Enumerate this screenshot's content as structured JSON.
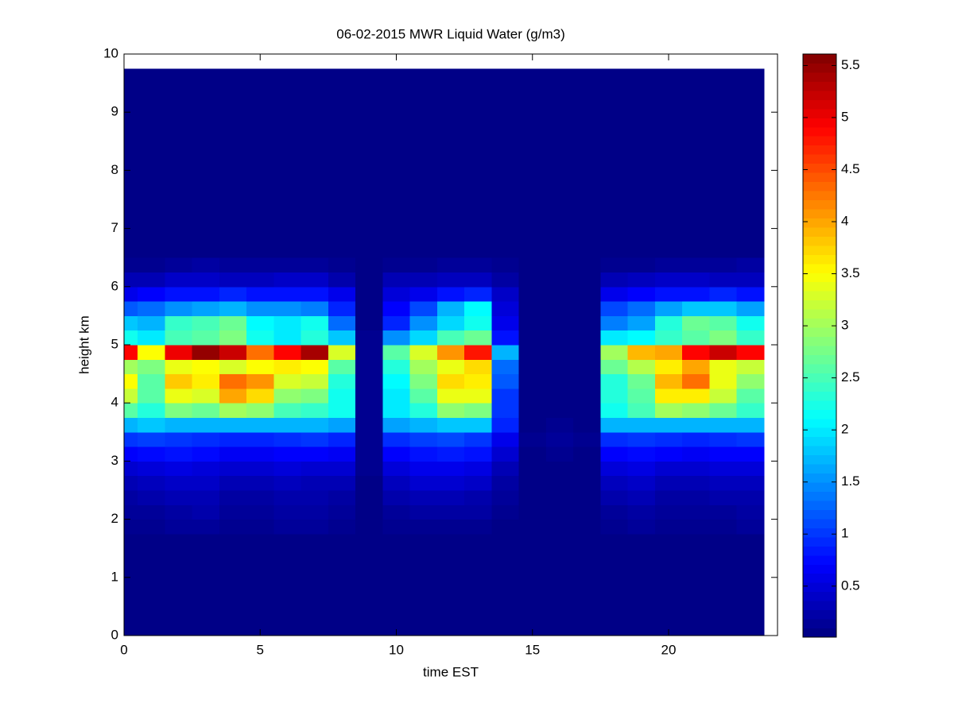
{
  "chart_data": {
    "type": "heatmap",
    "title": "06-02-2015 MWR Liquid Water (g/m3)",
    "x_label": "time EST",
    "y_label": "height km",
    "x": [
      0,
      1,
      2,
      3,
      4,
      5,
      6,
      7,
      8,
      9,
      10,
      11,
      12,
      13,
      14,
      15,
      16,
      17,
      18,
      19,
      20,
      21,
      22,
      23
    ],
    "y_bins": [
      0,
      1.75,
      2,
      2.25,
      2.5,
      2.75,
      3,
      3.25,
      3.5,
      3.75,
      4,
      4.25,
      4.5,
      4.75,
      5,
      5.25,
      5.5,
      5.75,
      6,
      6.25,
      6.5,
      9.75
    ],
    "z": [
      [
        0.05,
        0.05,
        0.05,
        0.05,
        0.05,
        0.05,
        0.05,
        0.05,
        0.05,
        0.05,
        0.05,
        0.05,
        0.05,
        0.05,
        0.05,
        0.05,
        0.05,
        0.05,
        0.05,
        0.05,
        0.05,
        0.05,
        0.05,
        0.05
      ],
      [
        0.1,
        0.1,
        0.15,
        0.15,
        0.1,
        0.1,
        0.15,
        0.15,
        0.1,
        0.05,
        0.1,
        0.1,
        0.1,
        0.1,
        0.05,
        0.05,
        0.05,
        0.05,
        0.1,
        0.15,
        0.1,
        0.1,
        0.1,
        0.15
      ],
      [
        0.15,
        0.15,
        0.2,
        0.25,
        0.15,
        0.15,
        0.2,
        0.2,
        0.15,
        0.05,
        0.15,
        0.2,
        0.2,
        0.2,
        0.1,
        0.05,
        0.05,
        0.05,
        0.15,
        0.2,
        0.15,
        0.15,
        0.15,
        0.2
      ],
      [
        0.2,
        0.25,
        0.3,
        0.3,
        0.2,
        0.2,
        0.25,
        0.25,
        0.2,
        0.05,
        0.25,
        0.3,
        0.3,
        0.25,
        0.15,
        0.05,
        0.05,
        0.05,
        0.25,
        0.3,
        0.2,
        0.2,
        0.25,
        0.25
      ],
      [
        0.3,
        0.35,
        0.4,
        0.4,
        0.3,
        0.3,
        0.35,
        0.3,
        0.3,
        0.05,
        0.35,
        0.45,
        0.45,
        0.4,
        0.2,
        0.05,
        0.05,
        0.05,
        0.35,
        0.4,
        0.3,
        0.3,
        0.35,
        0.35
      ],
      [
        0.45,
        0.5,
        0.55,
        0.5,
        0.45,
        0.45,
        0.5,
        0.45,
        0.45,
        0.1,
        0.5,
        0.6,
        0.6,
        0.55,
        0.3,
        0.05,
        0.05,
        0.05,
        0.5,
        0.55,
        0.45,
        0.45,
        0.5,
        0.5
      ],
      [
        0.7,
        0.75,
        0.8,
        0.75,
        0.65,
        0.65,
        0.7,
        0.7,
        0.65,
        0.1,
        0.7,
        0.8,
        0.85,
        0.8,
        0.45,
        0.05,
        0.1,
        0.05,
        0.7,
        0.75,
        0.7,
        0.65,
        0.7,
        0.7
      ],
      [
        1.0,
        1.05,
        1.0,
        0.95,
        0.9,
        0.9,
        0.95,
        1.0,
        0.9,
        0.1,
        0.95,
        1.05,
        1.1,
        1.0,
        0.6,
        0.1,
        0.15,
        0.1,
        0.95,
        1.0,
        0.95,
        0.9,
        0.95,
        1.0
      ],
      [
        1.7,
        1.8,
        1.7,
        1.7,
        1.7,
        1.7,
        1.7,
        1.7,
        1.6,
        0.1,
        1.6,
        1.7,
        1.8,
        1.8,
        0.9,
        0.05,
        0.1,
        0.05,
        1.7,
        1.7,
        1.7,
        1.7,
        1.7,
        1.7
      ],
      [
        2.6,
        2.3,
        2.8,
        2.7,
        3.0,
        2.9,
        2.5,
        2.4,
        2.2,
        0.1,
        2.0,
        2.3,
        2.9,
        2.8,
        1.0,
        0.05,
        0.05,
        0.05,
        2.2,
        2.5,
        3.0,
        2.9,
        2.7,
        2.4
      ],
      [
        3.2,
        2.6,
        3.4,
        3.3,
        4.0,
        3.7,
        2.9,
        2.8,
        2.2,
        0.1,
        2.0,
        2.6,
        3.4,
        3.4,
        1.0,
        0.05,
        0.05,
        0.05,
        2.3,
        2.6,
        3.6,
        3.6,
        3.2,
        2.6
      ],
      [
        3.5,
        2.6,
        3.8,
        3.6,
        4.3,
        4.1,
        3.3,
        3.2,
        2.3,
        0.1,
        2.1,
        2.8,
        3.7,
        3.6,
        1.2,
        0.05,
        0.05,
        0.05,
        2.3,
        2.7,
        3.9,
        4.3,
        3.4,
        2.9
      ],
      [
        3.0,
        2.8,
        3.4,
        3.5,
        3.3,
        3.5,
        3.6,
        3.5,
        2.6,
        0.1,
        2.3,
        3.0,
        3.4,
        3.7,
        1.3,
        0.05,
        0.05,
        0.05,
        2.7,
        3.1,
        3.6,
        4.0,
        3.4,
        3.2
      ],
      [
        4.9,
        3.5,
        5.0,
        5.5,
        5.2,
        4.3,
        4.9,
        5.4,
        3.3,
        0.1,
        2.6,
        3.3,
        4.1,
        4.8,
        1.7,
        0.05,
        0.05,
        0.05,
        3.0,
        3.9,
        4.0,
        4.9,
        5.2,
        4.9
      ],
      [
        2.2,
        2.0,
        2.5,
        2.6,
        2.8,
        2.2,
        2.0,
        2.3,
        1.8,
        0.1,
        1.5,
        1.9,
        2.5,
        2.7,
        0.8,
        0.05,
        0.05,
        0.05,
        2.0,
        2.1,
        2.4,
        2.6,
        2.8,
        2.4
      ],
      [
        1.8,
        1.7,
        2.4,
        2.5,
        2.7,
        2.1,
        2.0,
        2.2,
        1.3,
        0.05,
        0.9,
        1.5,
        1.9,
        2.2,
        0.6,
        0.05,
        0.05,
        0.05,
        1.4,
        1.6,
        2.3,
        2.7,
        2.6,
        2.2
      ],
      [
        1.2,
        1.3,
        1.5,
        1.6,
        1.7,
        1.5,
        1.5,
        1.4,
        0.9,
        0.05,
        0.7,
        1.1,
        1.7,
        2.1,
        0.5,
        0.05,
        0.05,
        0.05,
        1.1,
        1.3,
        1.6,
        1.8,
        1.8,
        1.6
      ],
      [
        0.6,
        0.7,
        0.8,
        0.8,
        0.9,
        0.8,
        0.8,
        0.8,
        0.6,
        0.05,
        0.5,
        0.6,
        0.8,
        0.9,
        0.4,
        0.05,
        0.05,
        0.05,
        0.6,
        0.7,
        0.8,
        0.8,
        0.9,
        0.8
      ],
      [
        0.3,
        0.3,
        0.4,
        0.4,
        0.35,
        0.35,
        0.4,
        0.4,
        0.25,
        0.05,
        0.3,
        0.3,
        0.35,
        0.35,
        0.2,
        0.05,
        0.05,
        0.05,
        0.3,
        0.35,
        0.4,
        0.4,
        0.35,
        0.35
      ],
      [
        0.1,
        0.1,
        0.15,
        0.2,
        0.15,
        0.15,
        0.15,
        0.15,
        0.1,
        0.05,
        0.1,
        0.1,
        0.15,
        0.15,
        0.1,
        0.05,
        0.05,
        0.05,
        0.1,
        0.1,
        0.15,
        0.15,
        0.15,
        0.2
      ],
      [
        0.05,
        0.05,
        0.05,
        0.05,
        0.05,
        0.05,
        0.05,
        0.05,
        0.05,
        0.05,
        0.05,
        0.05,
        0.05,
        0.05,
        0.05,
        0.05,
        0.05,
        0.05,
        0.05,
        0.05,
        0.05,
        0.05,
        0.05,
        0.05
      ]
    ],
    "xlim": [
      0,
      24
    ],
    "xticks": [
      0,
      5,
      10,
      15,
      20
    ],
    "ylim": [
      0,
      10
    ],
    "yticks": [
      0,
      1,
      2,
      3,
      4,
      5,
      6,
      7,
      8,
      9,
      10
    ],
    "colormap": "jet",
    "clim": [
      0.01,
      5.61
    ],
    "cticks": [
      0.5,
      1,
      1.5,
      2,
      2.5,
      3,
      3.5,
      4,
      4.5,
      5,
      5.5
    ]
  }
}
